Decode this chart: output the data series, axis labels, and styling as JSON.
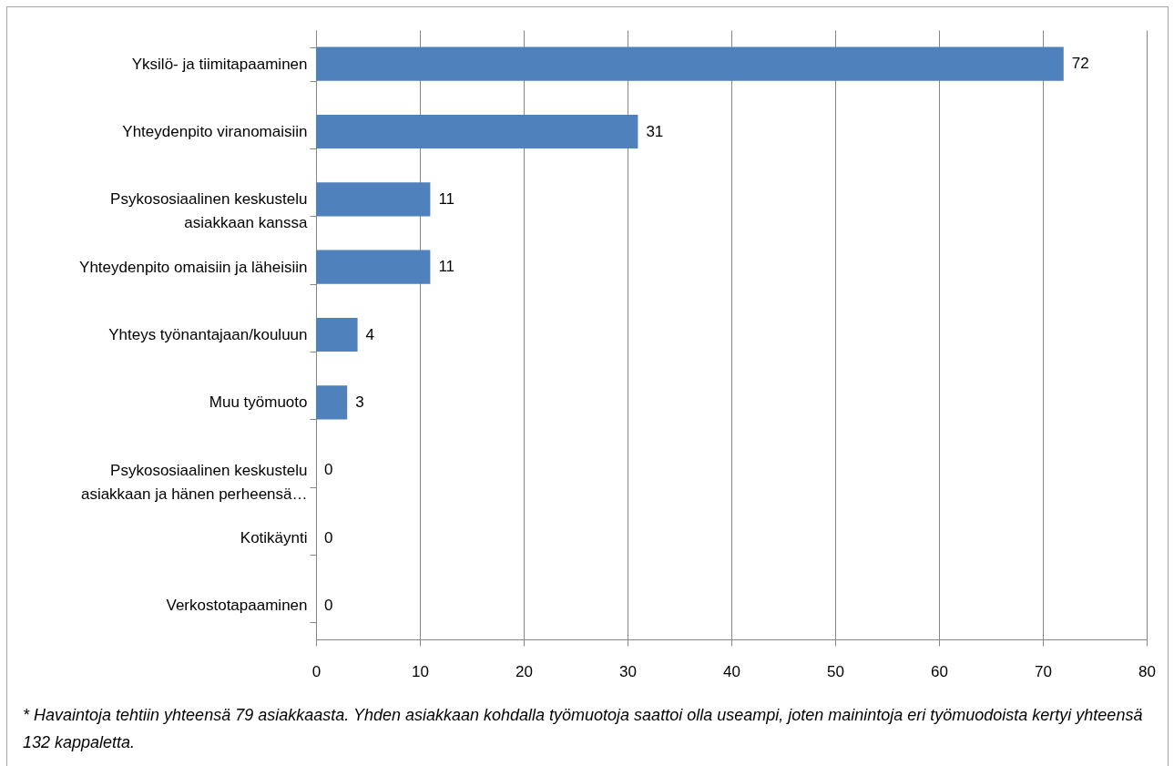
{
  "chart_data": {
    "type": "bar",
    "orientation": "horizontal",
    "categories": [
      "Yksilö- ja tiimitapaaminen",
      "Yhteydenpito viranomaisiin",
      "Psykososiaalinen keskustelu asiakkaan kanssa",
      "Yhteydenpito omaisiin ja läheisiin",
      "Yhteys työnantajaan/kouluun",
      "Muu työmuoto",
      "Psykososiaalinen keskustelu asiakkaan ja hänen perheensä…",
      "Kotikäynti",
      "Verkostotapaaminen"
    ],
    "values": [
      72,
      31,
      11,
      11,
      4,
      3,
      0,
      0,
      0
    ],
    "color": "#4f81bd",
    "xlim": [
      0,
      80
    ],
    "xticks": [
      0,
      10,
      20,
      30,
      40,
      50,
      60,
      70,
      80
    ],
    "grid": "x",
    "data_labels": true,
    "annotations": [
      "* Havaintoja tehtiin yhteensä 79 asiakkaasta. Yhden asiakkaan kohdalla työmuotoja saattoi olla useampi, joten mainintoja eri työmuodoista kertyi yhteensä 132 kappaletta."
    ]
  }
}
